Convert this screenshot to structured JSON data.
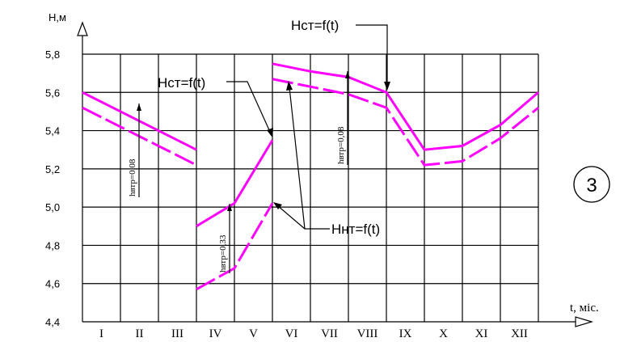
{
  "chart_data": {
    "type": "line",
    "ylabel": "H,м",
    "xlabel": "t, міс.",
    "ylim": [
      4.4,
      5.8
    ],
    "yticks": [
      "4,4",
      "4,6",
      "4,8",
      "5,0",
      "5,2",
      "5,4",
      "5,6",
      "5,8"
    ],
    "categories": [
      "I",
      "II",
      "III",
      "IV",
      "V",
      "VI",
      "VII",
      "VIII",
      "IX",
      "X",
      "XI",
      "XII"
    ],
    "grid": true,
    "series": [
      {
        "name": "Hст=f(t)",
        "style": "solid",
        "segments": [
          [
            [
              0,
              5.6
            ],
            [
              3,
              5.3
            ]
          ],
          [
            [
              3,
              4.9
            ],
            [
              4,
              5.02
            ],
            [
              5,
              5.35
            ]
          ],
          [
            [
              5,
              5.75
            ],
            [
              6,
              5.71
            ],
            [
              7,
              5.68
            ],
            [
              8,
              5.6
            ],
            [
              9,
              5.3
            ],
            [
              10,
              5.32
            ],
            [
              11,
              5.43
            ],
            [
              12,
              5.6
            ]
          ]
        ]
      },
      {
        "name": "Hнт=f(t)",
        "style": "dashed",
        "segments": [
          [
            [
              0,
              5.52
            ],
            [
              3,
              5.22
            ]
          ],
          [
            [
              3,
              4.57
            ],
            [
              4,
              4.68
            ],
            [
              5,
              5.02
            ]
          ],
          [
            [
              5,
              5.67
            ],
            [
              6,
              5.63
            ],
            [
              7,
              5.59
            ],
            [
              8,
              5.52
            ],
            [
              9,
              5.22
            ],
            [
              10,
              5.24
            ],
            [
              11,
              5.36
            ],
            [
              12,
              5.52
            ]
          ]
        ]
      }
    ],
    "annotations": {
      "hst_label_top": "Hст=f(t)",
      "hst_label_mid": "Hст=f(t)",
      "hnt_label": "Hнт=f(t)",
      "loss_1": "hвтр=0,08",
      "loss_2": "hвтр=0,33",
      "loss_3": "hвтр=0,08",
      "badge": "3"
    },
    "colors": {
      "series": "#ff00ff",
      "grid": "#000000"
    }
  }
}
